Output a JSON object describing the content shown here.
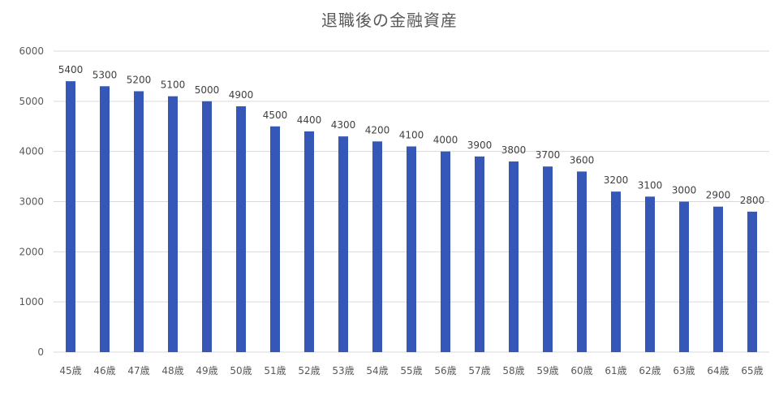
{
  "chart_data": {
    "type": "bar",
    "title": "退職後の金融資産",
    "xlabel": "",
    "ylabel": "",
    "categories": [
      "45歳",
      "46歳",
      "47歳",
      "48歳",
      "49歳",
      "50歳",
      "51歳",
      "52歳",
      "53歳",
      "54歳",
      "55歳",
      "56歳",
      "57歳",
      "58歳",
      "59歳",
      "60歳",
      "61歳",
      "62歳",
      "63歳",
      "64歳",
      "65歳"
    ],
    "values": [
      5400,
      5300,
      5200,
      5100,
      5000,
      4900,
      4500,
      4400,
      4300,
      4200,
      4100,
      4000,
      3900,
      3800,
      3700,
      3600,
      3200,
      3100,
      3000,
      2900,
      2800
    ],
    "ylim": [
      0,
      6000
    ],
    "yticks": [
      0,
      1000,
      2000,
      3000,
      4000,
      5000,
      6000
    ],
    "grid": true,
    "legend": "none",
    "data_labels": true,
    "colors": {
      "bar": "#3557b7",
      "grid": "#d9d9d9",
      "axis_text": "#595959",
      "label_text": "#404040"
    }
  }
}
